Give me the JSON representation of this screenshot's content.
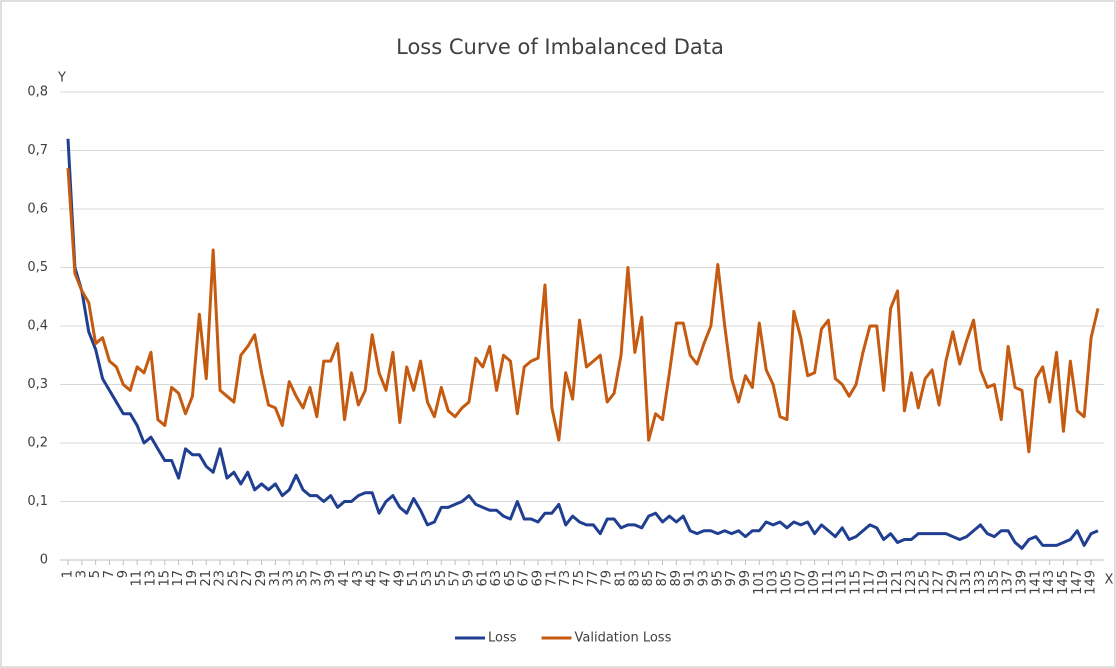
{
  "chart_data": {
    "type": "line",
    "title": "Loss Curve of Imbalanced Data",
    "xlabel": "X",
    "ylabel": "Y",
    "x": [
      1,
      2,
      3,
      4,
      5,
      6,
      7,
      8,
      9,
      10,
      11,
      12,
      13,
      14,
      15,
      16,
      17,
      18,
      19,
      20,
      21,
      22,
      23,
      24,
      25,
      26,
      27,
      28,
      29,
      30,
      31,
      32,
      33,
      34,
      35,
      36,
      37,
      38,
      39,
      40,
      41,
      42,
      43,
      44,
      45,
      46,
      47,
      48,
      49,
      50,
      51,
      52,
      53,
      54,
      55,
      56,
      57,
      58,
      59,
      60,
      61,
      62,
      63,
      64,
      65,
      66,
      67,
      68,
      69,
      70,
      71,
      72,
      73,
      74,
      75,
      76,
      77,
      78,
      79,
      80,
      81,
      82,
      83,
      84,
      85,
      86,
      87,
      88,
      89,
      90,
      91,
      92,
      93,
      94,
      95,
      96,
      97,
      98,
      99,
      100,
      101,
      102,
      103,
      104,
      105,
      106,
      107,
      108,
      109,
      110,
      111,
      112,
      113,
      114,
      115,
      116,
      117,
      118,
      119,
      120,
      121,
      122,
      123,
      124,
      125,
      126,
      127,
      128,
      129,
      130,
      131,
      132,
      133,
      134,
      135,
      136,
      137,
      138,
      139,
      140,
      141,
      142,
      143,
      144,
      145,
      146,
      147,
      148,
      149,
      150
    ],
    "xlim": [
      1,
      150
    ],
    "xticks": [
      1,
      3,
      5,
      7,
      9,
      11,
      13,
      15,
      17,
      19,
      21,
      23,
      25,
      27,
      29,
      31,
      33,
      35,
      37,
      39,
      41,
      43,
      45,
      47,
      49,
      51,
      53,
      55,
      57,
      59,
      61,
      63,
      65,
      67,
      69,
      71,
      73,
      75,
      77,
      79,
      81,
      83,
      85,
      87,
      89,
      91,
      93,
      95,
      97,
      99,
      101,
      103,
      105,
      107,
      109,
      111,
      113,
      115,
      117,
      119,
      121,
      123,
      125,
      127,
      129,
      131,
      133,
      135,
      137,
      139,
      141,
      143,
      145,
      147,
      149
    ],
    "ylim": [
      0,
      0.8
    ],
    "yticks": [
      0,
      {
        "value": 0.1,
        "label": "0,1"
      },
      {
        "value": 0.2,
        "label": "0,2"
      },
      {
        "value": 0.3,
        "label": "0,3"
      },
      {
        "value": 0.4,
        "label": "0,4"
      },
      {
        "value": 0.5,
        "label": "0,5"
      },
      {
        "value": 0.6,
        "label": "0,6"
      },
      {
        "value": 0.7,
        "label": "0,7"
      },
      {
        "value": 0.8,
        "label": "0,8"
      }
    ],
    "grid": true,
    "legend": "bottom",
    "series": [
      {
        "name": "Loss",
        "color": "#203f91",
        "values": [
          0.72,
          0.5,
          0.46,
          0.39,
          0.36,
          0.31,
          0.29,
          0.27,
          0.25,
          0.25,
          0.23,
          0.2,
          0.21,
          0.19,
          0.17,
          0.17,
          0.14,
          0.19,
          0.18,
          0.18,
          0.16,
          0.15,
          0.19,
          0.14,
          0.15,
          0.13,
          0.15,
          0.12,
          0.13,
          0.12,
          0.13,
          0.11,
          0.12,
          0.145,
          0.12,
          0.11,
          0.11,
          0.1,
          0.11,
          0.09,
          0.1,
          0.1,
          0.11,
          0.115,
          0.115,
          0.08,
          0.1,
          0.11,
          0.09,
          0.08,
          0.105,
          0.085,
          0.06,
          0.065,
          0.09,
          0.09,
          0.095,
          0.1,
          0.11,
          0.095,
          0.09,
          0.085,
          0.085,
          0.075,
          0.07,
          0.1,
          0.07,
          0.07,
          0.065,
          0.08,
          0.08,
          0.095,
          0.06,
          0.075,
          0.065,
          0.06,
          0.06,
          0.045,
          0.07,
          0.07,
          0.055,
          0.06,
          0.06,
          0.055,
          0.075,
          0.08,
          0.065,
          0.075,
          0.065,
          0.075,
          0.05,
          0.045,
          0.05,
          0.05,
          0.045,
          0.05,
          0.045,
          0.05,
          0.04,
          0.05,
          0.05,
          0.065,
          0.06,
          0.065,
          0.055,
          0.065,
          0.06,
          0.065,
          0.045,
          0.06,
          0.05,
          0.04,
          0.055,
          0.035,
          0.04,
          0.05,
          0.06,
          0.055,
          0.035,
          0.045,
          0.03,
          0.035,
          0.035,
          0.045,
          0.045,
          0.045,
          0.045,
          0.045,
          0.04,
          0.035,
          0.04,
          0.05,
          0.06,
          0.045,
          0.04,
          0.05,
          0.05,
          0.03,
          0.02,
          0.035,
          0.04,
          0.025,
          0.025,
          0.025,
          0.03,
          0.035,
          0.05,
          0.025,
          0.045,
          0.05
        ]
      },
      {
        "name": "Validation Loss",
        "color": "#c55a11",
        "values": [
          0.67,
          0.49,
          0.46,
          0.44,
          0.37,
          0.38,
          0.34,
          0.33,
          0.3,
          0.29,
          0.33,
          0.32,
          0.355,
          0.24,
          0.23,
          0.295,
          0.285,
          0.25,
          0.28,
          0.42,
          0.31,
          0.53,
          0.29,
          0.28,
          0.27,
          0.35,
          0.365,
          0.385,
          0.32,
          0.265,
          0.26,
          0.23,
          0.305,
          0.28,
          0.26,
          0.295,
          0.245,
          0.34,
          0.34,
          0.37,
          0.24,
          0.32,
          0.265,
          0.29,
          0.385,
          0.32,
          0.29,
          0.355,
          0.235,
          0.33,
          0.29,
          0.34,
          0.27,
          0.245,
          0.295,
          0.255,
          0.245,
          0.26,
          0.27,
          0.345,
          0.33,
          0.365,
          0.29,
          0.35,
          0.34,
          0.25,
          0.33,
          0.34,
          0.345,
          0.47,
          0.26,
          0.205,
          0.32,
          0.275,
          0.41,
          0.33,
          0.34,
          0.35,
          0.27,
          0.285,
          0.35,
          0.5,
          0.355,
          0.415,
          0.205,
          0.25,
          0.24,
          0.32,
          0.405,
          0.405,
          0.35,
          0.335,
          0.37,
          0.4,
          0.505,
          0.4,
          0.31,
          0.27,
          0.315,
          0.295,
          0.405,
          0.325,
          0.3,
          0.245,
          0.24,
          0.425,
          0.38,
          0.315,
          0.32,
          0.395,
          0.41,
          0.31,
          0.3,
          0.28,
          0.3,
          0.355,
          0.4,
          0.4,
          0.29,
          0.43,
          0.46,
          0.255,
          0.32,
          0.26,
          0.31,
          0.325,
          0.265,
          0.34,
          0.39,
          0.335,
          0.375,
          0.41,
          0.325,
          0.295,
          0.3,
          0.24,
          0.365,
          0.295,
          0.29,
          0.185,
          0.31,
          0.33,
          0.27,
          0.355,
          0.22,
          0.34,
          0.255,
          0.245,
          0.38,
          0.43
        ]
      }
    ]
  }
}
